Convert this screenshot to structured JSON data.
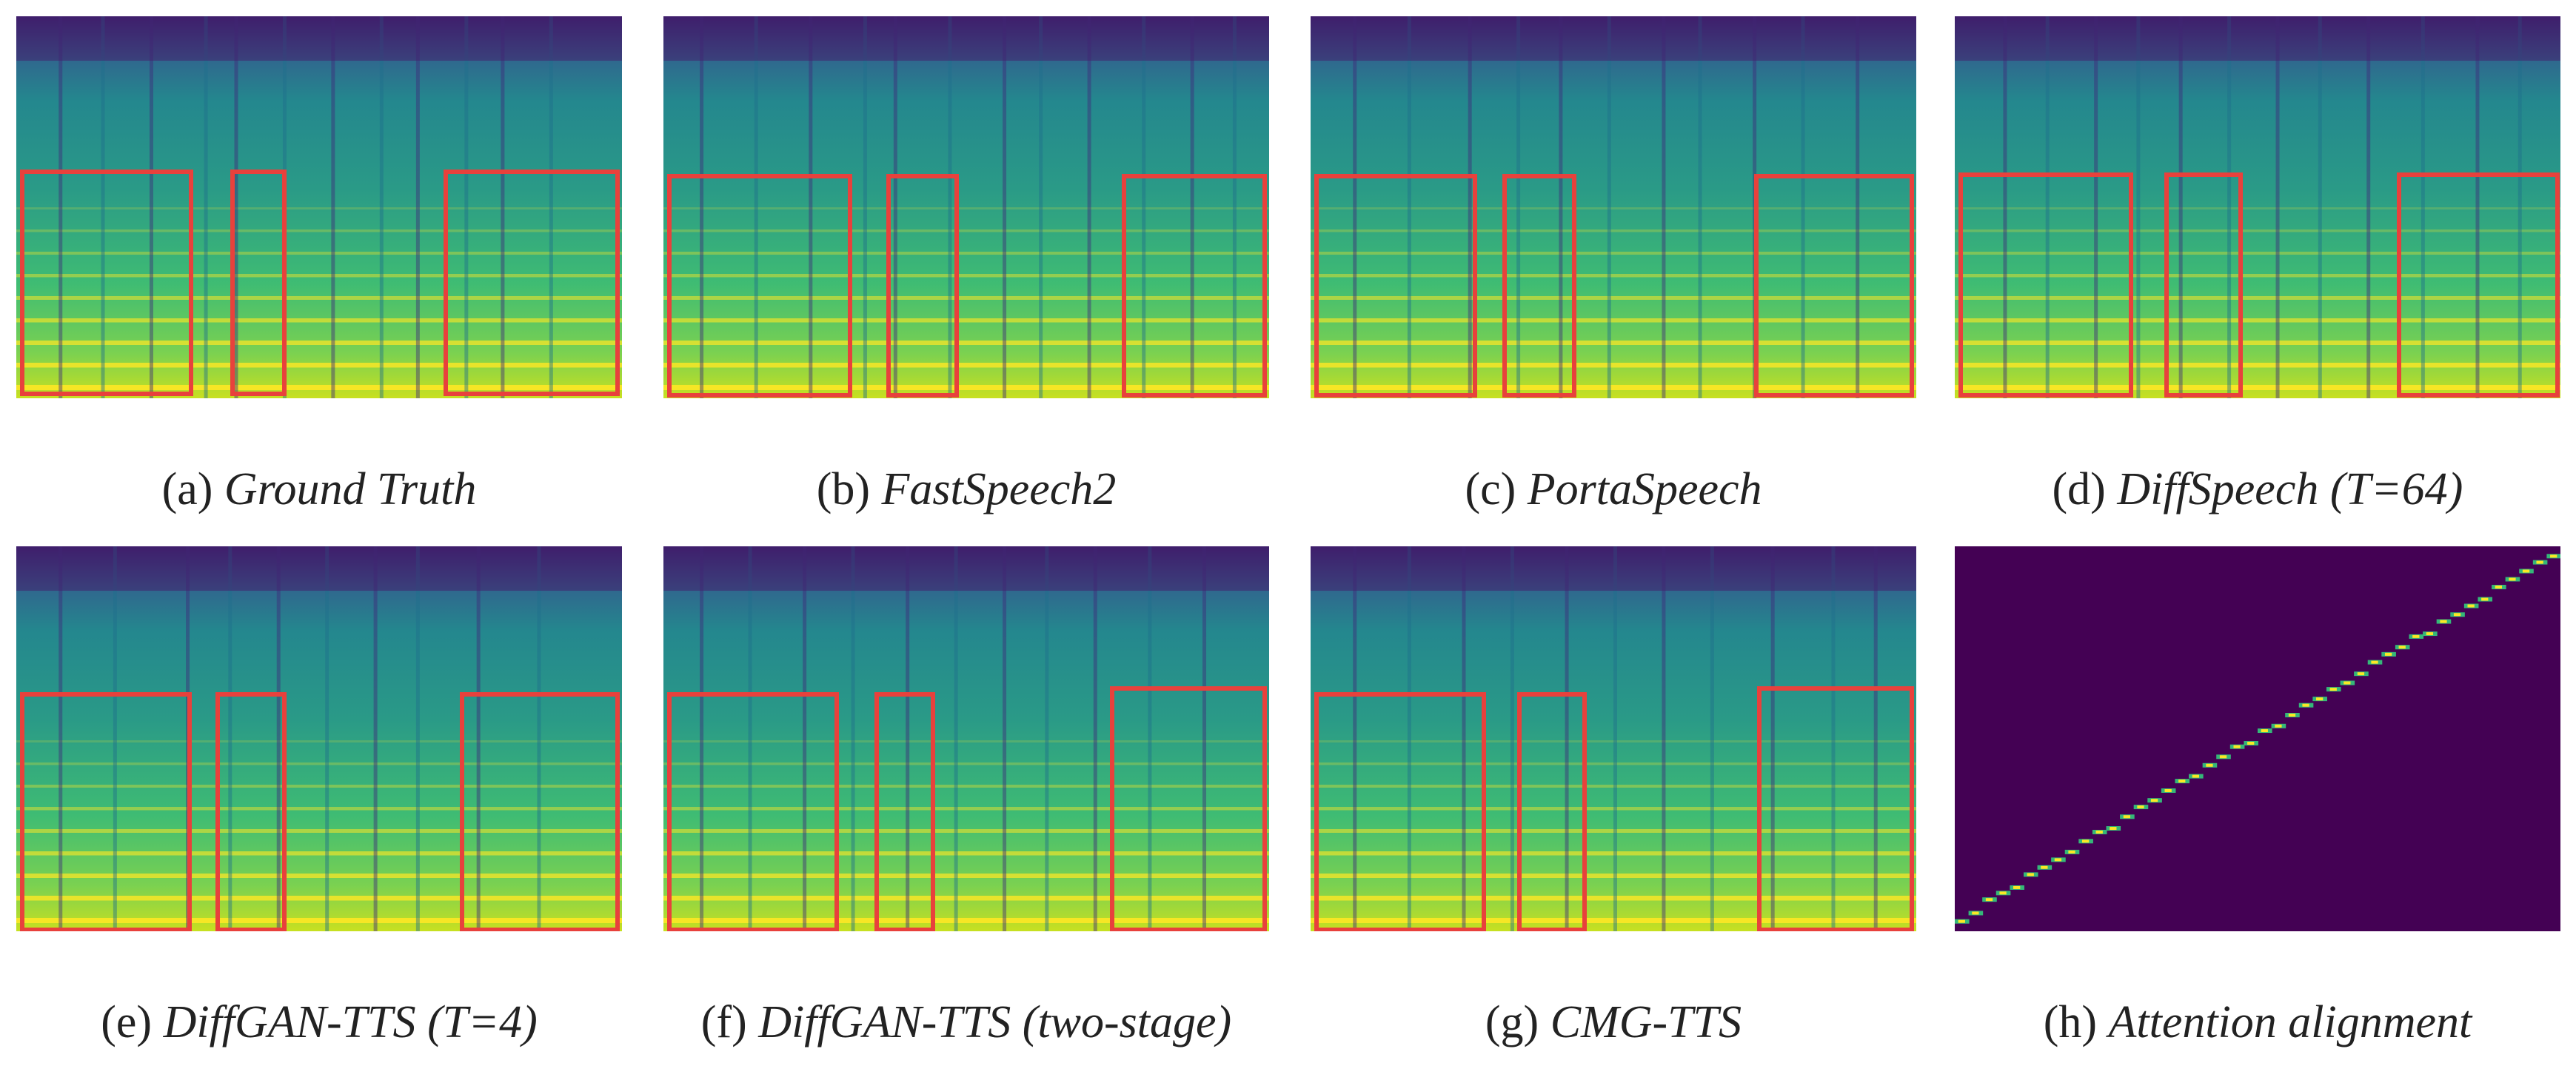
{
  "colors": {
    "viridis_dark": "#440154",
    "viridis_mid": "#21918c",
    "viridis_bright": "#fde725",
    "highlight_box": "#e8413c"
  },
  "panels": [
    {
      "id": "a",
      "label": "(a)",
      "name": "Ground Truth",
      "kind": "spectrogram",
      "highlight_count": 3
    },
    {
      "id": "b",
      "label": "(b)",
      "name": "FastSpeech2",
      "kind": "spectrogram",
      "highlight_count": 3
    },
    {
      "id": "c",
      "label": "(c)",
      "name": "PortaSpeech",
      "kind": "spectrogram",
      "highlight_count": 3
    },
    {
      "id": "d",
      "label": "(d)",
      "name": "DiffSpeech (T=64)",
      "kind": "spectrogram",
      "highlight_count": 3
    },
    {
      "id": "e",
      "label": "(e)",
      "name": "DiffGAN-TTS (T=4)",
      "kind": "spectrogram",
      "highlight_count": 3
    },
    {
      "id": "f",
      "label": "(f)",
      "name": "DiffGAN-TTS (two-stage)",
      "kind": "spectrogram",
      "highlight_count": 3
    },
    {
      "id": "g",
      "label": "(g)",
      "name": "CMG-TTS",
      "kind": "spectrogram",
      "highlight_count": 3
    },
    {
      "id": "h",
      "label": "(h)",
      "name": "Attention alignment",
      "kind": "alignment",
      "highlight_count": 0
    }
  ]
}
